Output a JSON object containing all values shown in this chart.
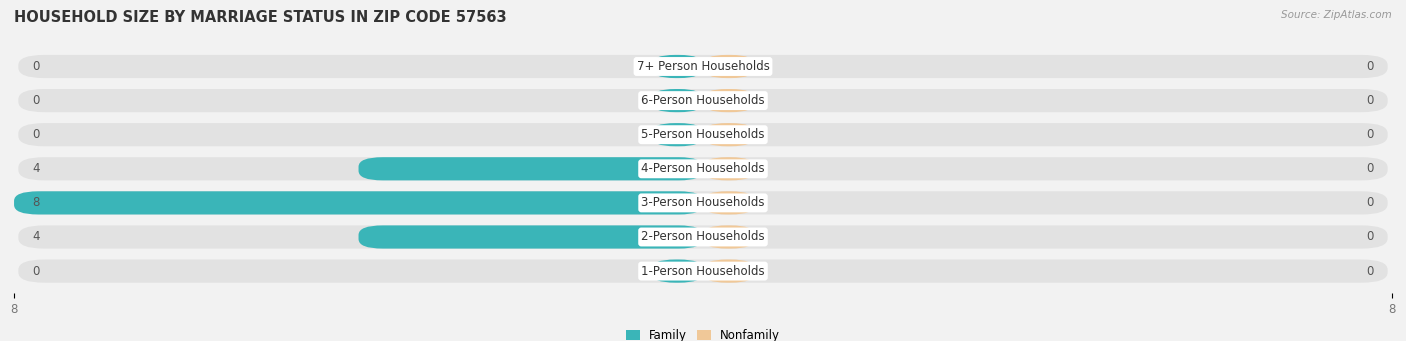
{
  "title": "HOUSEHOLD SIZE BY MARRIAGE STATUS IN ZIP CODE 57563",
  "source": "Source: ZipAtlas.com",
  "categories": [
    "7+ Person Households",
    "6-Person Households",
    "5-Person Households",
    "4-Person Households",
    "3-Person Households",
    "2-Person Households",
    "1-Person Households"
  ],
  "family_values": [
    0,
    0,
    0,
    4,
    8,
    4,
    0
  ],
  "nonfamily_values": [
    0,
    0,
    0,
    0,
    0,
    0,
    0
  ],
  "family_color": "#3ab5b8",
  "nonfamily_color": "#f0c898",
  "xlim": [
    -8,
    8
  ],
  "background_color": "#f2f2f2",
  "bar_bg_color": "#e2e2e2",
  "title_fontsize": 10.5,
  "label_fontsize": 8.5,
  "tick_fontsize": 8.5,
  "figsize": [
    14.06,
    3.41
  ],
  "dpi": 100,
  "min_stub": 0.6
}
